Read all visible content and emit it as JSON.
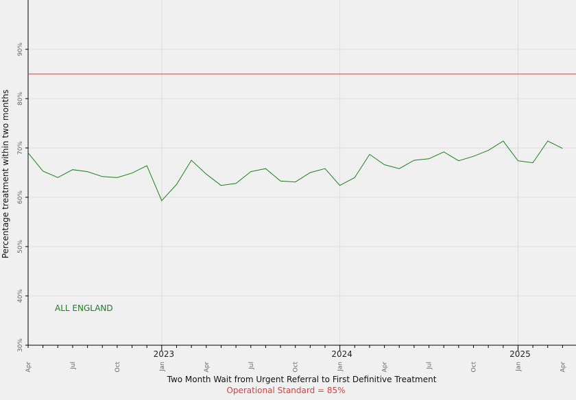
{
  "chart_data": {
    "type": "line",
    "title": "",
    "xlabel": "Two Month Wait from Urgent Referral to First Definitive Treatment",
    "ylabel": "Percentage treatment within two months",
    "subtitle": "Operational Standard = 85%",
    "ylim": [
      30,
      100
    ],
    "yticks": [
      "30%",
      "40%",
      "50%",
      "60%",
      "70%",
      "80%",
      "90%"
    ],
    "xtick_labels": [
      "Apr",
      "Jul",
      "Oct",
      "Jan",
      "Apr",
      "Jul",
      "Oct",
      "Jan",
      "Apr",
      "Jul",
      "Oct",
      "Jan",
      "Apr"
    ],
    "xtick_index": [
      0,
      3,
      6,
      9,
      12,
      15,
      18,
      21,
      24,
      27,
      30,
      33,
      36
    ],
    "year_labels": [
      "2023",
      "2024",
      "2025"
    ],
    "year_index": [
      9,
      21,
      33
    ],
    "grid": true,
    "operational_standard": 85,
    "standard_color": "#e03c3c",
    "series_color": "#1a7f1a",
    "series": [
      {
        "name": "ALL ENGLAND",
        "values": [
          69.0,
          65.3,
          64.0,
          65.6,
          65.2,
          64.2,
          64.0,
          64.9,
          66.4,
          59.3,
          62.6,
          67.5,
          64.7,
          62.4,
          62.8,
          65.2,
          65.8,
          63.3,
          63.1,
          65.0,
          65.8,
          62.4,
          64.0,
          68.7,
          66.6,
          65.8,
          67.5,
          67.8,
          69.2,
          67.4,
          68.3,
          69.5,
          71.4,
          67.4,
          67.0,
          71.4,
          69.9
        ]
      }
    ]
  }
}
